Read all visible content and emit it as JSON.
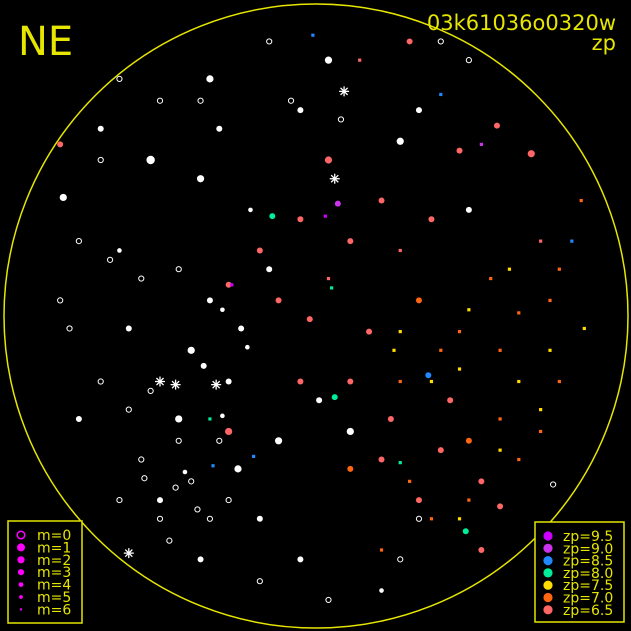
{
  "chart_data": {
    "type": "scatter",
    "title": "03k61036o0320w",
    "subtitle": "zp",
    "orientation_label": "NE",
    "coordinate_note": "x,y in field-of-view units, circle radius = 1",
    "xlim": [
      -1,
      1
    ],
    "ylim": [
      -1,
      1
    ],
    "grid": false,
    "colors": {
      "frame": "#e6e600",
      "unmatched": "#ffffff",
      "legend_mag": "#ff00ff",
      "zp": {
        "9.5": "#cc00ff",
        "9.0": "#cc33ee",
        "8.5": "#2288ff",
        "8.0": "#00ee99",
        "7.5": "#ffdd00",
        "7.0": "#ff6611",
        "6.5": "#ff6666"
      }
    },
    "mag_legend": {
      "placement": "bottom-left",
      "entries": [
        "m=0",
        "m=1",
        "m=2",
        "m=3",
        "m=4",
        "m=5",
        "m=6"
      ]
    },
    "zp_legend": {
      "placement": "bottom-right",
      "entries": [
        {
          "label": "zp=9.5",
          "zp": "9.5"
        },
        {
          "label": "zp=9.0",
          "zp": "9.0"
        },
        {
          "label": "zp=8.5",
          "zp": "8.5"
        },
        {
          "label": "zp=8.0",
          "zp": "8.0"
        },
        {
          "label": "zp=7.5",
          "zp": "7.5"
        },
        {
          "label": "zp=7.0",
          "zp": "7.0"
        },
        {
          "label": "zp=6.5",
          "zp": "6.5"
        }
      ]
    },
    "points": [
      [
        -0.81,
        0.38,
        "w",
        2
      ],
      [
        -0.69,
        0.6,
        "w",
        3
      ],
      [
        -0.34,
        0.76,
        "w",
        2
      ],
      [
        -0.05,
        0.66,
        "w",
        3
      ],
      [
        -0.37,
        0.44,
        "w",
        2
      ],
      [
        -0.34,
        0.05,
        "w",
        3
      ],
      [
        -0.4,
        -0.11,
        "w",
        2
      ],
      [
        -0.28,
        -0.21,
        "w",
        3
      ],
      [
        -0.44,
        -0.33,
        "w",
        2
      ],
      [
        -0.25,
        -0.49,
        "w",
        2
      ],
      [
        -0.5,
        -0.59,
        "w",
        3
      ],
      [
        -0.05,
        -0.78,
        "w",
        3
      ],
      [
        0.11,
        -0.37,
        "w",
        2
      ],
      [
        -0.6,
        -0.04,
        "w",
        3
      ],
      [
        -0.76,
        -0.33,
        "w",
        3
      ],
      [
        -0.15,
        0.15,
        "w",
        3
      ],
      [
        -0.21,
        0.34,
        "w",
        4
      ],
      [
        0.04,
        0.82,
        "w",
        2
      ],
      [
        0.33,
        0.66,
        "w",
        3
      ],
      [
        0.27,
        0.56,
        "w",
        2
      ],
      [
        0.49,
        0.34,
        "w",
        3
      ],
      [
        -0.63,
        0.21,
        "w",
        4
      ],
      [
        -0.18,
        -0.65,
        "w",
        3
      ],
      [
        -0.37,
        -0.78,
        "w",
        3
      ],
      [
        0.21,
        -0.88,
        "w",
        4
      ],
      [
        0.01,
        -0.27,
        "w",
        3
      ],
      [
        -0.12,
        -0.4,
        "w",
        2
      ],
      [
        -0.24,
        -0.04,
        "w",
        3
      ],
      [
        -0.53,
        0.5,
        "w",
        1
      ],
      [
        -0.31,
        0.6,
        "w",
        3
      ],
      [
        -0.3,
        0.02,
        "w",
        4
      ],
      [
        -0.36,
        -0.16,
        "w",
        3
      ],
      [
        -0.22,
        -0.1,
        "w",
        4
      ],
      [
        -0.42,
        -0.5,
        "w",
        4
      ],
      [
        -0.3,
        -0.32,
        "w",
        4
      ],
      [
        -0.63,
        0.76,
        "o",
        4
      ],
      [
        -0.5,
        0.69,
        "o",
        4
      ],
      [
        -0.15,
        0.88,
        "o",
        4
      ],
      [
        -0.08,
        0.69,
        "o",
        4
      ],
      [
        -0.76,
        0.24,
        "o",
        4
      ],
      [
        -0.66,
        0.18,
        "o",
        4
      ],
      [
        -0.56,
        0.12,
        "o",
        4
      ],
      [
        -0.79,
        -0.04,
        "o",
        4
      ],
      [
        -0.69,
        -0.21,
        "o",
        4
      ],
      [
        -0.6,
        -0.3,
        "o",
        4
      ],
      [
        -0.56,
        -0.46,
        "o",
        4
      ],
      [
        -0.63,
        -0.59,
        "o",
        4
      ],
      [
        -0.5,
        -0.65,
        "o",
        4
      ],
      [
        -0.4,
        -0.53,
        "o",
        4
      ],
      [
        -0.31,
        -0.4,
        "o",
        4
      ],
      [
        -0.47,
        -0.72,
        "o",
        4
      ],
      [
        -0.28,
        -0.59,
        "o",
        4
      ],
      [
        -0.18,
        -0.85,
        "o",
        4
      ],
      [
        0.04,
        -0.91,
        "o",
        4
      ],
      [
        0.27,
        -0.78,
        "o",
        4
      ],
      [
        0.4,
        0.88,
        "o",
        4
      ],
      [
        0.49,
        0.82,
        "o",
        4
      ],
      [
        -0.37,
        0.69,
        "o",
        4
      ],
      [
        0.08,
        0.63,
        "o",
        4
      ],
      [
        -0.82,
        0.05,
        "o",
        4
      ],
      [
        -0.44,
        0.15,
        "o",
        4
      ],
      [
        -0.53,
        -0.24,
        "o",
        4
      ],
      [
        -0.34,
        -0.65,
        "o",
        4
      ],
      [
        -0.44,
        -0.4,
        "o",
        4
      ],
      [
        -0.69,
        0.5,
        "o",
        4
      ],
      [
        0.76,
        -0.54,
        "o",
        4
      ],
      [
        0.33,
        -0.65,
        "o",
        4
      ],
      [
        -0.45,
        -0.55,
        "o",
        4
      ],
      [
        -0.55,
        -0.52,
        "o",
        4
      ],
      [
        -0.38,
        -0.62,
        "o",
        4
      ],
      [
        0.09,
        0.72,
        "s",
        1
      ],
      [
        0.06,
        0.44,
        "s",
        1
      ],
      [
        -0.45,
        -0.22,
        "s",
        1
      ],
      [
        -0.32,
        -0.22,
        "s",
        1
      ],
      [
        -0.6,
        -0.76,
        "s",
        1
      ],
      [
        -0.5,
        -0.21,
        "s",
        1
      ],
      [
        0.04,
        0.5,
        "6.5",
        2
      ],
      [
        -0.05,
        0.31,
        "6.5",
        3
      ],
      [
        0.11,
        0.24,
        "6.5",
        3
      ],
      [
        0.21,
        0.37,
        "6.5",
        3
      ],
      [
        0.27,
        0.21,
        "6.5",
        4
      ],
      [
        0.37,
        0.31,
        "6.5",
        3
      ],
      [
        -0.12,
        0.05,
        "6.5",
        3
      ],
      [
        -0.02,
        -0.01,
        "6.5",
        3
      ],
      [
        0.04,
        0.12,
        "6.5",
        4
      ],
      [
        0.17,
        -0.05,
        "6.5",
        3
      ],
      [
        0.11,
        -0.21,
        "6.5",
        3
      ],
      [
        0.21,
        -0.46,
        "6.5",
        3
      ],
      [
        0.33,
        -0.59,
        "6.5",
        3
      ],
      [
        0.53,
        -0.75,
        "6.5",
        3
      ],
      [
        0.59,
        -0.61,
        "6.5",
        3
      ],
      [
        0.4,
        -0.43,
        "6.5",
        3
      ],
      [
        0.53,
        -0.53,
        "6.5",
        3
      ],
      [
        0.69,
        0.52,
        "6.5",
        2
      ],
      [
        0.58,
        0.61,
        "6.5",
        3
      ],
      [
        -0.28,
        0.1,
        "6.5",
        3
      ],
      [
        -0.18,
        0.21,
        "6.5",
        3
      ],
      [
        -0.82,
        0.55,
        "6.5",
        3
      ],
      [
        0.14,
        0.82,
        "6.5",
        4
      ],
      [
        0.3,
        0.88,
        "6.5",
        3
      ],
      [
        0.72,
        0.24,
        "6.5",
        4
      ],
      [
        0.46,
        0.53,
        "6.5",
        3
      ],
      [
        -0.28,
        -0.37,
        "6.5",
        2
      ],
      [
        0.43,
        -0.27,
        "6.5",
        3
      ],
      [
        0.24,
        -0.33,
        "6.5",
        3
      ],
      [
        -0.05,
        -0.21,
        "6.5",
        3
      ],
      [
        0.33,
        0.05,
        "7.0",
        3
      ],
      [
        0.46,
        -0.05,
        "7.0",
        4
      ],
      [
        0.59,
        -0.11,
        "7.0",
        4
      ],
      [
        0.65,
        0.01,
        "7.0",
        4
      ],
      [
        0.75,
        0.05,
        "7.0",
        4
      ],
      [
        0.78,
        -0.21,
        "7.0",
        4
      ],
      [
        0.72,
        -0.37,
        "7.0",
        4
      ],
      [
        0.59,
        -0.33,
        "7.0",
        4
      ],
      [
        0.49,
        -0.4,
        "7.0",
        3
      ],
      [
        0.37,
        -0.65,
        "7.0",
        4
      ],
      [
        0.21,
        -0.75,
        "7.0",
        4
      ],
      [
        0.49,
        -0.59,
        "7.0",
        4
      ],
      [
        0.85,
        0.37,
        "7.0",
        4
      ],
      [
        0.78,
        0.15,
        "7.0",
        4
      ],
      [
        0.4,
        -0.11,
        "7.0",
        4
      ],
      [
        0.27,
        -0.21,
        "7.0",
        4
      ],
      [
        0.56,
        0.12,
        "7.0",
        4
      ],
      [
        0.3,
        -0.53,
        "7.0",
        4
      ],
      [
        0.11,
        -0.49,
        "7.0",
        3
      ],
      [
        0.65,
        -0.46,
        "7.0",
        4
      ],
      [
        0.46,
        -0.17,
        "7.5",
        5
      ],
      [
        0.65,
        -0.21,
        "7.5",
        5
      ],
      [
        0.75,
        -0.11,
        "7.5",
        5
      ],
      [
        0.37,
        -0.21,
        "7.5",
        5
      ],
      [
        0.59,
        -0.43,
        "7.5",
        5
      ],
      [
        0.27,
        -0.05,
        "7.5",
        4
      ],
      [
        0.72,
        -0.3,
        "7.5",
        5
      ],
      [
        0.46,
        -0.65,
        "7.5",
        5
      ],
      [
        0.62,
        0.15,
        "7.5",
        5
      ],
      [
        0.86,
        -0.04,
        "7.5",
        5
      ],
      [
        0.25,
        -0.11,
        "7.5",
        5
      ],
      [
        0.49,
        0.02,
        "7.5",
        5
      ],
      [
        -0.14,
        0.32,
        "8.0",
        3
      ],
      [
        0.06,
        -0.26,
        "8.0",
        3
      ],
      [
        0.27,
        -0.47,
        "8.0",
        4
      ],
      [
        -0.34,
        -0.33,
        "8.0",
        4
      ],
      [
        0.48,
        -0.69,
        "8.0",
        3
      ],
      [
        0.05,
        0.09,
        "8.0",
        4
      ],
      [
        0.36,
        -0.19,
        "8.5",
        3
      ],
      [
        0.4,
        0.71,
        "8.5",
        4
      ],
      [
        -0.33,
        -0.48,
        "8.5",
        4
      ],
      [
        0.82,
        0.24,
        "8.5",
        4
      ],
      [
        -0.2,
        -0.45,
        "8.5",
        4
      ],
      [
        -0.01,
        0.9,
        "8.5",
        4
      ],
      [
        0.07,
        0.36,
        "9.0",
        3
      ],
      [
        0.53,
        0.55,
        "9.0",
        4
      ],
      [
        0.03,
        0.32,
        "9.5",
        4
      ],
      [
        -0.27,
        0.1,
        "9.5",
        4
      ]
    ]
  }
}
